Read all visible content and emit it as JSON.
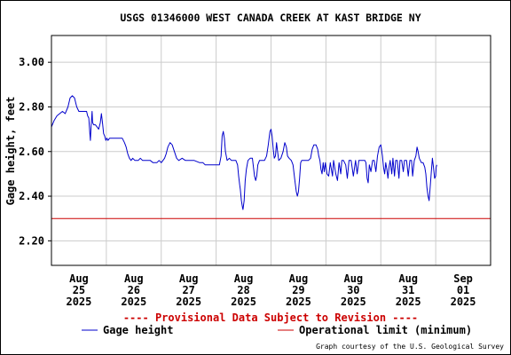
{
  "chart_data": {
    "type": "line",
    "title": "USGS 01346000 WEST CANADA CREEK AT KAST BRIDGE NY",
    "ylabel": "Gage height, feet",
    "xlabel": "",
    "ylim": [
      2.09,
      3.12
    ],
    "yticks": [
      "3.00",
      "2.80",
      "2.60",
      "2.40",
      "2.20"
    ],
    "ytick_values": [
      3.0,
      2.8,
      2.6,
      2.4,
      2.2
    ],
    "xlim": [
      0,
      8
    ],
    "xticks": [
      {
        "x": 0.5,
        "lines": [
          "Aug",
          "25",
          "2025"
        ]
      },
      {
        "x": 1.5,
        "lines": [
          "Aug",
          "26",
          "2025"
        ]
      },
      {
        "x": 2.5,
        "lines": [
          "Aug",
          "27",
          "2025"
        ]
      },
      {
        "x": 3.5,
        "lines": [
          "Aug",
          "28",
          "2025"
        ]
      },
      {
        "x": 4.5,
        "lines": [
          "Aug",
          "29",
          "2025"
        ]
      },
      {
        "x": 5.5,
        "lines": [
          "Aug",
          "30",
          "2025"
        ]
      },
      {
        "x": 6.5,
        "lines": [
          "Aug",
          "31",
          "2025"
        ]
      },
      {
        "x": 7.5,
        "lines": [
          "Sep",
          "01",
          "2025"
        ]
      }
    ],
    "grid": true,
    "series": [
      {
        "name": "Gage height",
        "color": "#0000cc",
        "points": [
          [
            0.0,
            2.71
          ],
          [
            0.05,
            2.74
          ],
          [
            0.1,
            2.76
          ],
          [
            0.15,
            2.77
          ],
          [
            0.2,
            2.78
          ],
          [
            0.25,
            2.77
          ],
          [
            0.3,
            2.8
          ],
          [
            0.34,
            2.84
          ],
          [
            0.38,
            2.85
          ],
          [
            0.42,
            2.84
          ],
          [
            0.46,
            2.8
          ],
          [
            0.5,
            2.78
          ],
          [
            0.55,
            2.78
          ],
          [
            0.6,
            2.78
          ],
          [
            0.64,
            2.78
          ],
          [
            0.66,
            2.76
          ],
          [
            0.68,
            2.75
          ],
          [
            0.7,
            2.68
          ],
          [
            0.71,
            2.65
          ],
          [
            0.72,
            2.7
          ],
          [
            0.74,
            2.78
          ],
          [
            0.75,
            2.73
          ],
          [
            0.77,
            2.72
          ],
          [
            0.8,
            2.72
          ],
          [
            0.83,
            2.71
          ],
          [
            0.86,
            2.7
          ],
          [
            0.89,
            2.73
          ],
          [
            0.91,
            2.77
          ],
          [
            0.93,
            2.73
          ],
          [
            0.95,
            2.68
          ],
          [
            0.97,
            2.67
          ],
          [
            0.99,
            2.65
          ],
          [
            1.01,
            2.66
          ],
          [
            1.03,
            2.65
          ],
          [
            1.06,
            2.66
          ],
          [
            1.1,
            2.66
          ],
          [
            1.2,
            2.66
          ],
          [
            1.29,
            2.66
          ],
          [
            1.33,
            2.64
          ],
          [
            1.36,
            2.62
          ],
          [
            1.39,
            2.59
          ],
          [
            1.42,
            2.57
          ],
          [
            1.45,
            2.56
          ],
          [
            1.48,
            2.57
          ],
          [
            1.52,
            2.56
          ],
          [
            1.58,
            2.56
          ],
          [
            1.62,
            2.57
          ],
          [
            1.66,
            2.56
          ],
          [
            1.72,
            2.56
          ],
          [
            1.8,
            2.56
          ],
          [
            1.85,
            2.55
          ],
          [
            1.92,
            2.55
          ],
          [
            1.96,
            2.56
          ],
          [
            2.0,
            2.55
          ],
          [
            2.06,
            2.57
          ],
          [
            2.09,
            2.59
          ],
          [
            2.12,
            2.62
          ],
          [
            2.16,
            2.64
          ],
          [
            2.2,
            2.63
          ],
          [
            2.24,
            2.6
          ],
          [
            2.28,
            2.57
          ],
          [
            2.32,
            2.56
          ],
          [
            2.38,
            2.57
          ],
          [
            2.44,
            2.56
          ],
          [
            2.5,
            2.56
          ],
          [
            2.6,
            2.56
          ],
          [
            2.7,
            2.55
          ],
          [
            2.76,
            2.55
          ],
          [
            2.8,
            2.54
          ],
          [
            2.9,
            2.54
          ],
          [
            3.0,
            2.54
          ],
          [
            3.06,
            2.54
          ],
          [
            3.09,
            2.58
          ],
          [
            3.11,
            2.67
          ],
          [
            3.13,
            2.69
          ],
          [
            3.15,
            2.66
          ],
          [
            3.17,
            2.6
          ],
          [
            3.2,
            2.56
          ],
          [
            3.24,
            2.57
          ],
          [
            3.28,
            2.56
          ],
          [
            3.32,
            2.56
          ],
          [
            3.36,
            2.56
          ],
          [
            3.39,
            2.54
          ],
          [
            3.41,
            2.49
          ],
          [
            3.43,
            2.45
          ],
          [
            3.44,
            2.43
          ],
          [
            3.46,
            2.38
          ],
          [
            3.48,
            2.35
          ],
          [
            3.49,
            2.34
          ],
          [
            3.51,
            2.38
          ],
          [
            3.53,
            2.47
          ],
          [
            3.55,
            2.52
          ],
          [
            3.58,
            2.56
          ],
          [
            3.62,
            2.57
          ],
          [
            3.66,
            2.57
          ],
          [
            3.68,
            2.53
          ],
          [
            3.7,
            2.49
          ],
          [
            3.72,
            2.47
          ],
          [
            3.74,
            2.49
          ],
          [
            3.76,
            2.54
          ],
          [
            3.79,
            2.56
          ],
          [
            3.84,
            2.56
          ],
          [
            3.88,
            2.56
          ],
          [
            3.92,
            2.58
          ],
          [
            3.95,
            2.63
          ],
          [
            3.98,
            2.69
          ],
          [
            4.0,
            2.7
          ],
          [
            4.02,
            2.67
          ],
          [
            4.04,
            2.61
          ],
          [
            4.06,
            2.57
          ],
          [
            4.08,
            2.58
          ],
          [
            4.1,
            2.64
          ],
          [
            4.12,
            2.6
          ],
          [
            4.14,
            2.56
          ],
          [
            4.18,
            2.57
          ],
          [
            4.22,
            2.6
          ],
          [
            4.25,
            2.64
          ],
          [
            4.28,
            2.62
          ],
          [
            4.3,
            2.58
          ],
          [
            4.33,
            2.57
          ],
          [
            4.37,
            2.56
          ],
          [
            4.4,
            2.54
          ],
          [
            4.42,
            2.5
          ],
          [
            4.44,
            2.46
          ],
          [
            4.46,
            2.42
          ],
          [
            4.48,
            2.4
          ],
          [
            4.5,
            2.42
          ],
          [
            4.52,
            2.48
          ],
          [
            4.54,
            2.55
          ],
          [
            4.56,
            2.56
          ],
          [
            4.62,
            2.56
          ],
          [
            4.68,
            2.56
          ],
          [
            4.72,
            2.57
          ],
          [
            4.75,
            2.61
          ],
          [
            4.78,
            2.63
          ],
          [
            4.82,
            2.63
          ],
          [
            4.85,
            2.61
          ],
          [
            4.87,
            2.58
          ],
          [
            4.89,
            2.56
          ],
          [
            4.91,
            2.52
          ],
          [
            4.93,
            2.5
          ],
          [
            4.95,
            2.55
          ],
          [
            4.97,
            2.51
          ],
          [
            4.99,
            2.55
          ],
          [
            5.02,
            2.5
          ],
          [
            5.05,
            2.49
          ],
          [
            5.08,
            2.55
          ],
          [
            5.12,
            2.49
          ],
          [
            5.14,
            2.56
          ],
          [
            5.18,
            2.5
          ],
          [
            5.21,
            2.47
          ],
          [
            5.24,
            2.55
          ],
          [
            5.27,
            2.5
          ],
          [
            5.29,
            2.56
          ],
          [
            5.32,
            2.56
          ],
          [
            5.36,
            2.54
          ],
          [
            5.39,
            2.48
          ],
          [
            5.42,
            2.56
          ],
          [
            5.46,
            2.56
          ],
          [
            5.5,
            2.49
          ],
          [
            5.54,
            2.56
          ],
          [
            5.57,
            2.5
          ],
          [
            5.6,
            2.56
          ],
          [
            5.64,
            2.56
          ],
          [
            5.68,
            2.56
          ],
          [
            5.71,
            2.56
          ],
          [
            5.73,
            2.55
          ],
          [
            5.75,
            2.48
          ],
          [
            5.77,
            2.46
          ],
          [
            5.79,
            2.54
          ],
          [
            5.82,
            2.51
          ],
          [
            5.85,
            2.56
          ],
          [
            5.88,
            2.56
          ],
          [
            5.91,
            2.51
          ],
          [
            5.94,
            2.58
          ],
          [
            5.97,
            2.62
          ],
          [
            6.0,
            2.63
          ],
          [
            6.03,
            2.58
          ],
          [
            6.05,
            2.53
          ],
          [
            6.07,
            2.5
          ],
          [
            6.09,
            2.55
          ],
          [
            6.11,
            2.52
          ],
          [
            6.13,
            2.48
          ],
          [
            6.15,
            2.53
          ],
          [
            6.17,
            2.56
          ],
          [
            6.2,
            2.5
          ],
          [
            6.22,
            2.57
          ],
          [
            6.25,
            2.49
          ],
          [
            6.27,
            2.56
          ],
          [
            6.3,
            2.56
          ],
          [
            6.33,
            2.48
          ],
          [
            6.35,
            2.56
          ],
          [
            6.38,
            2.56
          ],
          [
            6.41,
            2.51
          ],
          [
            6.43,
            2.56
          ],
          [
            6.47,
            2.56
          ],
          [
            6.5,
            2.49
          ],
          [
            6.53,
            2.56
          ],
          [
            6.56,
            2.56
          ],
          [
            6.58,
            2.49
          ],
          [
            6.61,
            2.56
          ],
          [
            6.64,
            2.58
          ],
          [
            6.66,
            2.62
          ],
          [
            6.68,
            2.6
          ],
          [
            6.7,
            2.57
          ],
          [
            6.72,
            2.56
          ],
          [
            6.74,
            2.55
          ],
          [
            6.77,
            2.55
          ],
          [
            6.8,
            2.53
          ],
          [
            6.82,
            2.5
          ],
          [
            6.84,
            2.44
          ],
          [
            6.86,
            2.4
          ],
          [
            6.88,
            2.38
          ],
          [
            6.9,
            2.44
          ],
          [
            6.92,
            2.51
          ],
          [
            6.94,
            2.57
          ],
          [
            6.96,
            2.53
          ],
          [
            6.98,
            2.48
          ],
          [
            7.0,
            2.49
          ],
          [
            7.01,
            2.53
          ],
          [
            7.02,
            2.54
          ]
        ]
      },
      {
        "name": "Operational limit (minimum)",
        "color": "#cc0000",
        "points": [
          [
            0,
            2.3
          ],
          [
            8,
            2.3
          ]
        ]
      }
    ],
    "legend_position": "bottom",
    "annotation": "---- Provisional Data Subject to Revision ----",
    "annotation_color": "#cc0000",
    "credit": "Graph courtesy of the U.S. Geological Survey"
  }
}
